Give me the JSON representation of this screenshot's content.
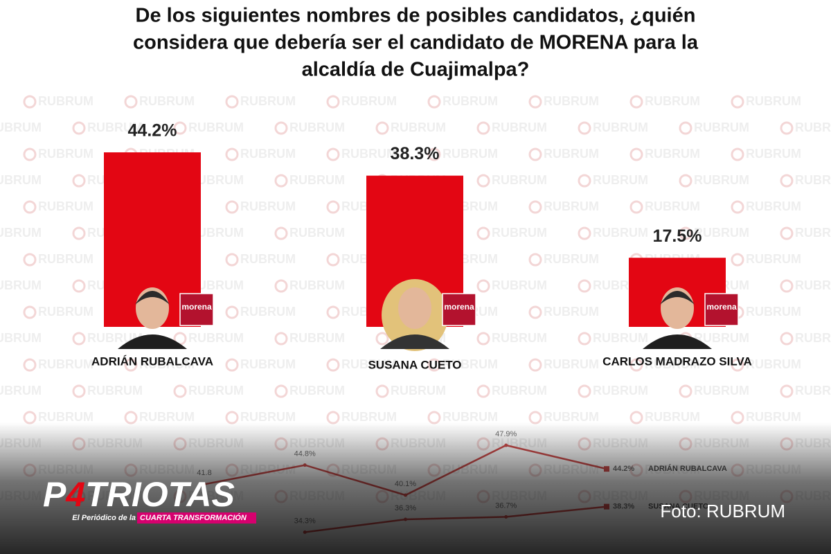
{
  "chart_data": [
    {
      "type": "bar",
      "title": [
        "De los siguientes nombres de posibles candidatos, ¿quién",
        "considera que debería ser el candidato de MORENA para la",
        "alcaldía de Cuajimalpa?"
      ],
      "categories": [
        "ADRIÁN RUBALCAVA",
        "SUSANA CUETO",
        "CARLOS MADRAZO SILVA"
      ],
      "values": [
        44.2,
        38.3,
        17.5
      ],
      "value_labels": [
        "44.2%",
        "38.3%",
        "17.5%"
      ],
      "color": "#e30613",
      "badge": "morena"
    },
    {
      "type": "line",
      "categories": [
        null,
        null,
        null,
        null,
        null
      ],
      "series": [
        {
          "name": "ADRIÁN RUBALCAVA",
          "color": "#c8302e",
          "values": [
            41.8,
            44.8,
            40.1,
            47.9,
            44.2
          ],
          "value_labels": [
            "41.8",
            "44.8%",
            "40.1%",
            "47.9%",
            "44.2%"
          ]
        },
        {
          "name": "SUSANA CUETO",
          "color": "#c8302e",
          "values": [
            null,
            34.3,
            36.3,
            36.7,
            38.3
          ],
          "value_labels": [
            null,
            "34.3%",
            "36.3%",
            "36.7%",
            "38.3%"
          ]
        }
      ]
    }
  ],
  "watermark": "RUBRUM",
  "logo": {
    "parts": [
      "P",
      "4",
      "TRIOTAS"
    ],
    "tagline": "El Periódico de la",
    "tagline_highlight": "CUARTA TRANSFORMACIÓN"
  },
  "credit": "Foto: RUBRUM"
}
